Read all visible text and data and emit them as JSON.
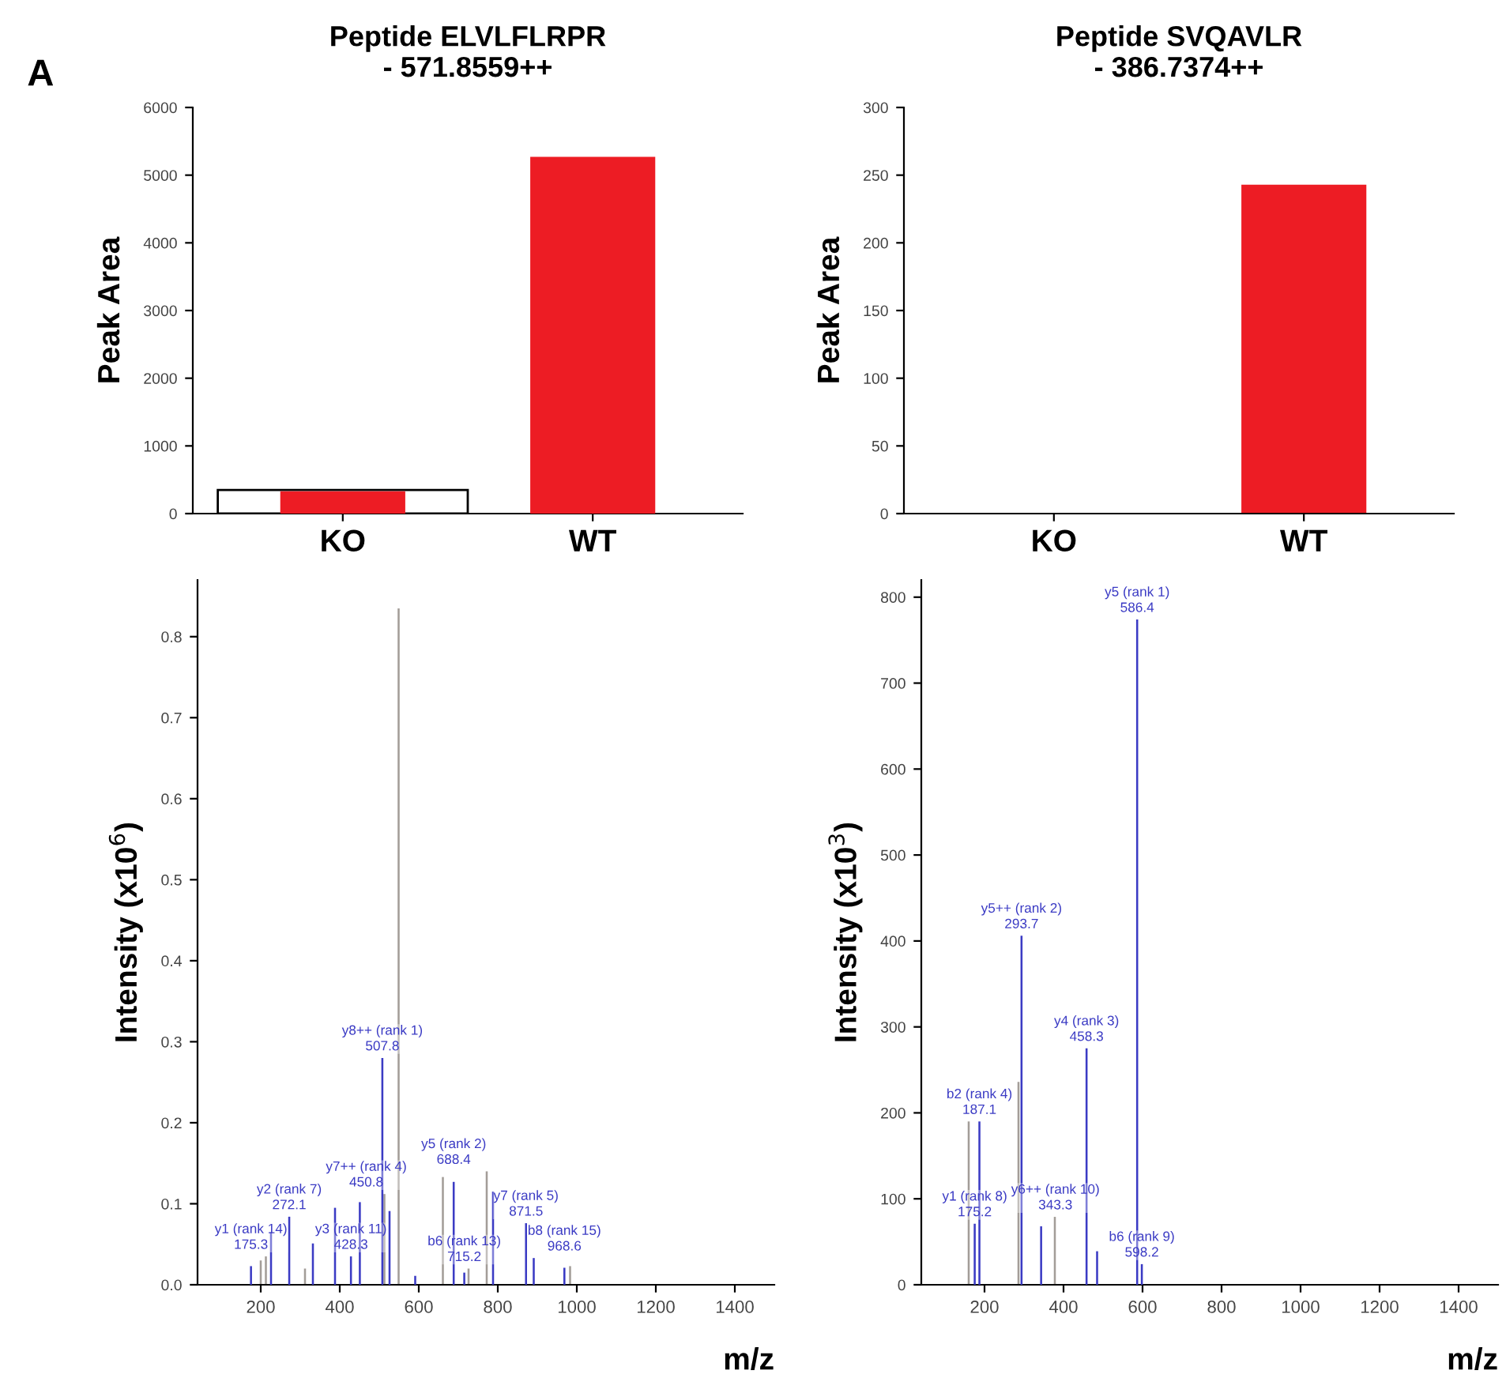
{
  "chart_data": [
    {
      "type": "bar",
      "title": "Peptide ELVLFLRPR\n- 571.8559++",
      "ylabel": "Peak Area",
      "categories": [
        "KO",
        "WT"
      ],
      "series": [
        {
          "color": "#ffffff",
          "values": [
            350,
            null
          ]
        },
        {
          "color": "#ed1c24",
          "values": [
            330,
            5270
          ]
        }
      ],
      "ylim": [
        0,
        6000
      ],
      "yticks": [
        0,
        1000,
        2000,
        3000,
        4000,
        5000,
        6000
      ],
      "grid": false,
      "legend": false,
      "annotations": [
        "A"
      ]
    },
    {
      "type": "bar",
      "title": "Peptide SVQAVLR\n- 386.7374++",
      "ylabel": "Peak Area",
      "categories": [
        "KO",
        "WT"
      ],
      "series": [
        {
          "color": "#ed1c24",
          "values": [
            0,
            243
          ]
        }
      ],
      "ylim": [
        0,
        300
      ],
      "yticks": [
        0,
        50,
        100,
        150,
        200,
        250,
        300
      ],
      "grid": false,
      "legend": false
    },
    {
      "type": "bar",
      "xlabel": "m/z",
      "ylabel": "Intensity (x10$^{6}$)",
      "series": [
        {
          "color": "#a39d98",
          "x": [
            200,
            213,
            312,
            513,
            549,
            661,
            726,
            772,
            983
          ],
          "values": [
            0.03,
            0.035,
            0.02,
            0.112,
            0.835,
            0.133,
            0.02,
            0.14,
            0.023
          ]
        },
        {
          "color": "#3b3bc4",
          "x": [
            175.3,
            226,
            272.1,
            332,
            388,
            428.3,
            450.8,
            507.8,
            526,
            591,
            688.4,
            715.2,
            788,
            871.5,
            891,
            968.6
          ],
          "values": [
            0.023,
            0.065,
            0.084,
            0.051,
            0.095,
            0.035,
            0.102,
            0.28,
            0.091,
            0.011,
            0.127,
            0.015,
            0.115,
            0.076,
            0.033,
            0.021
          ]
        }
      ],
      "xlim": [
        40,
        1500
      ],
      "xticks": [
        200,
        400,
        600,
        800,
        1000,
        1200,
        1400
      ],
      "ylim": [
        0,
        0.87
      ],
      "yticks": [
        {
          "value": 0,
          "label": "0.0"
        },
        {
          "value": 0.1,
          "label": "0.1"
        },
        {
          "value": 0.2,
          "label": "0.2"
        },
        {
          "value": 0.3,
          "label": "0.3"
        },
        {
          "value": 0.4,
          "label": "0.4"
        },
        {
          "value": 0.5,
          "label": "0.5"
        },
        {
          "value": 0.6,
          "label": "0.6"
        },
        {
          "value": 0.7,
          "label": "0.7"
        },
        {
          "value": 0.8,
          "label": "0.8"
        }
      ],
      "grid": false,
      "legend": false,
      "annotations": [
        {
          "text": "y1 (rank 14)\n175.3",
          "x": 175.3,
          "y": 0.023
        },
        {
          "text": "y2 (rank 7)\n272.1",
          "x": 272.1,
          "y": 0.084
        },
        {
          "text": "y3 (rank 11)\n428.3",
          "x": 428.3,
          "y": 0.035
        },
        {
          "text": "y7++ (rank 4)\n450.8",
          "x": 450.8,
          "y": 0.102
        },
        {
          "text": "y8++ (rank 1)\n507.8",
          "x": 507.8,
          "y": 0.28
        },
        {
          "text": "y5 (rank 2)\n688.4",
          "x": 688.4,
          "y": 0.127
        },
        {
          "text": "b6 (rank 13)\n715.2",
          "x": 715.2,
          "y": 0.015
        },
        {
          "text": "y7 (rank 5)\n871.5",
          "x": 871.5,
          "y": 0.076
        },
        {
          "text": "b8 (rank 15)\n968.6",
          "x": 968.6,
          "y": 0.021
        }
      ]
    },
    {
      "type": "bar",
      "xlabel": "m/z",
      "ylabel": "Intensity (x10$^{3}$)",
      "series": [
        {
          "color": "#a39d98",
          "x": [
            160,
            286,
            378
          ],
          "values": [
            190,
            236,
            79
          ]
        },
        {
          "color": "#3b3bc4",
          "x": [
            175.2,
            187.1,
            293.7,
            343.3,
            458.3,
            485,
            586.4,
            598.2
          ],
          "values": [
            71,
            190,
            406,
            68,
            275,
            39,
            774,
            24
          ]
        }
      ],
      "xlim": [
        40,
        1500
      ],
      "xticks": [
        200,
        400,
        600,
        800,
        1000,
        1200,
        1400
      ],
      "ylim": [
        0,
        820
      ],
      "yticks": [
        0,
        100,
        200,
        300,
        400,
        500,
        600,
        700,
        800
      ],
      "grid": false,
      "legend": false,
      "annotations": [
        {
          "text": "y1 (rank 8)\n175.2",
          "x": 175.2,
          "y": 71
        },
        {
          "text": "b2 (rank 4)\n187.1",
          "x": 187.1,
          "y": 190
        },
        {
          "text": "y5++ (rank 2)\n293.7",
          "x": 293.7,
          "y": 406
        },
        {
          "text": "y6++ (rank 10)\n343.3",
          "x": 343.3,
          "y": 68
        },
        {
          "text": "y4 (rank 3)\n458.3",
          "x": 458.3,
          "y": 275
        },
        {
          "text": "y5 (rank 1)\n586.4",
          "x": 586.4,
          "y": 774
        },
        {
          "text": "b6 (rank 9)\n598.2",
          "x": 598.2,
          "y": 24
        }
      ]
    }
  ]
}
